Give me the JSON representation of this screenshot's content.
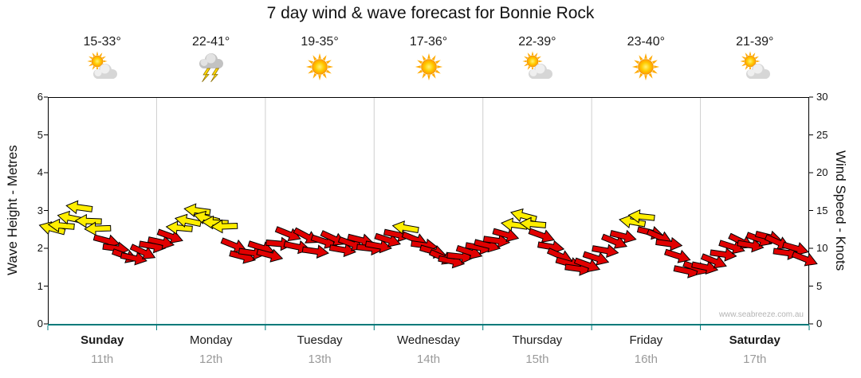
{
  "title": "7 day wind & wave forecast for Bonnie Rock",
  "watermark": "www.seabreeze.com.au",
  "days": [
    {
      "name": "Sunday",
      "date": "11th",
      "temp": "15-33°",
      "icon": "sun-cloud",
      "weekend": true
    },
    {
      "name": "Monday",
      "date": "12th",
      "temp": "22-41°",
      "icon": "storm",
      "weekend": false
    },
    {
      "name": "Tuesday",
      "date": "13th",
      "temp": "19-35°",
      "icon": "sun",
      "weekend": false
    },
    {
      "name": "Wednesday",
      "date": "14th",
      "temp": "17-36°",
      "icon": "sun",
      "weekend": false
    },
    {
      "name": "Thursday",
      "date": "15th",
      "temp": "22-39°",
      "icon": "sun-cloud",
      "weekend": false
    },
    {
      "name": "Friday",
      "date": "16th",
      "temp": "23-40°",
      "icon": "sun",
      "weekend": false
    },
    {
      "name": "Saturday",
      "date": "17th",
      "temp": "21-39°",
      "icon": "sun-cloud",
      "weekend": true
    }
  ],
  "chart_data": {
    "type": "scatter",
    "marker": "wind-arrow",
    "description": "Wind speed forecast shown as direction arrows. x = days from start of Sunday (0-7), value = wind speed in knots (right axis; left axis is wave height in metres at 1m = 5kn scale), dir = arrow rotation in degrees (0 = pointing right).",
    "axes": {
      "left_label": "Wave Height - Metres",
      "right_label": "Wind Speed - Knots",
      "left_ticks": [
        0,
        1,
        2,
        3,
        4,
        5,
        6
      ],
      "right_ticks": [
        0,
        5,
        10,
        15,
        20,
        25,
        30
      ],
      "left_range": [
        0,
        6
      ],
      "right_range": [
        0,
        30
      ],
      "x_range_days": [
        0,
        7
      ]
    },
    "color_rule": {
      "strong_min_knots": 12.5,
      "strong": "#ffee00",
      "moderate": "#e10000"
    },
    "points": [
      [
        0.04,
        12.6,
        195
      ],
      [
        0.125,
        13.0,
        185
      ],
      [
        0.21,
        14.0,
        192
      ],
      [
        0.29,
        15.4,
        188
      ],
      [
        0.375,
        13.6,
        182
      ],
      [
        0.46,
        12.6,
        178
      ],
      [
        0.54,
        11.0,
        15
      ],
      [
        0.625,
        10.0,
        8
      ],
      [
        0.71,
        9.0,
        20
      ],
      [
        0.79,
        8.7,
        12
      ],
      [
        0.875,
        9.5,
        25
      ],
      [
        0.96,
        10.3,
        10
      ],
      [
        1.04,
        10.8,
        12
      ],
      [
        1.125,
        11.6,
        20
      ],
      [
        1.21,
        12.7,
        185
      ],
      [
        1.29,
        13.6,
        192
      ],
      [
        1.375,
        15.0,
        188
      ],
      [
        1.46,
        14.0,
        195
      ],
      [
        1.54,
        13.4,
        183
      ],
      [
        1.625,
        12.9,
        178
      ],
      [
        1.71,
        10.4,
        22
      ],
      [
        1.79,
        8.9,
        15
      ],
      [
        1.875,
        9.4,
        8
      ],
      [
        1.96,
        10.1,
        18
      ],
      [
        2.04,
        9.1,
        15
      ],
      [
        2.125,
        10.6,
        5
      ],
      [
        2.21,
        11.9,
        22
      ],
      [
        2.29,
        10.2,
        12
      ],
      [
        2.375,
        11.6,
        28
      ],
      [
        2.46,
        9.6,
        8
      ],
      [
        2.54,
        10.9,
        18
      ],
      [
        2.625,
        11.3,
        25
      ],
      [
        2.71,
        9.8,
        10
      ],
      [
        2.79,
        10.6,
        20
      ],
      [
        2.875,
        11.1,
        14
      ],
      [
        2.96,
        10.0,
        6
      ],
      [
        3.04,
        10.3,
        10
      ],
      [
        3.125,
        11.1,
        18
      ],
      [
        3.21,
        11.8,
        12
      ],
      [
        3.29,
        12.7,
        190
      ],
      [
        3.375,
        11.2,
        22
      ],
      [
        3.46,
        10.4,
        8
      ],
      [
        3.54,
        9.6,
        16
      ],
      [
        3.625,
        8.8,
        24
      ],
      [
        3.71,
        8.3,
        12
      ],
      [
        3.79,
        8.9,
        6
      ],
      [
        3.875,
        9.5,
        18
      ],
      [
        3.96,
        10.1,
        10
      ],
      [
        4.04,
        10.4,
        14
      ],
      [
        4.125,
        11.0,
        8
      ],
      [
        4.21,
        11.8,
        16
      ],
      [
        4.29,
        13.1,
        188
      ],
      [
        4.375,
        14.3,
        195
      ],
      [
        4.46,
        13.2,
        185
      ],
      [
        4.54,
        11.7,
        20
      ],
      [
        4.625,
        10.2,
        10
      ],
      [
        4.71,
        9.0,
        24
      ],
      [
        4.79,
        8.0,
        16
      ],
      [
        4.875,
        7.3,
        8
      ],
      [
        4.96,
        7.8,
        20
      ],
      [
        5.04,
        8.7,
        18
      ],
      [
        5.125,
        9.7,
        10
      ],
      [
        5.21,
        10.9,
        22
      ],
      [
        5.29,
        11.6,
        14
      ],
      [
        5.375,
        13.5,
        190
      ],
      [
        5.46,
        14.2,
        186
      ],
      [
        5.54,
        12.1,
        14
      ],
      [
        5.625,
        11.5,
        24
      ],
      [
        5.71,
        10.6,
        8
      ],
      [
        5.79,
        9.0,
        18
      ],
      [
        5.875,
        7.0,
        12
      ],
      [
        5.96,
        7.4,
        20
      ],
      [
        6.04,
        7.5,
        12
      ],
      [
        6.125,
        8.3,
        22
      ],
      [
        6.21,
        9.2,
        8
      ],
      [
        6.29,
        10.2,
        18
      ],
      [
        6.375,
        10.9,
        26
      ],
      [
        6.46,
        10.4,
        10
      ],
      [
        6.54,
        11.2,
        20
      ],
      [
        6.625,
        11.5,
        14
      ],
      [
        6.71,
        10.8,
        24
      ],
      [
        6.79,
        9.4,
        8
      ],
      [
        6.875,
        10.0,
        16
      ],
      [
        6.96,
        8.6,
        22
      ]
    ]
  }
}
